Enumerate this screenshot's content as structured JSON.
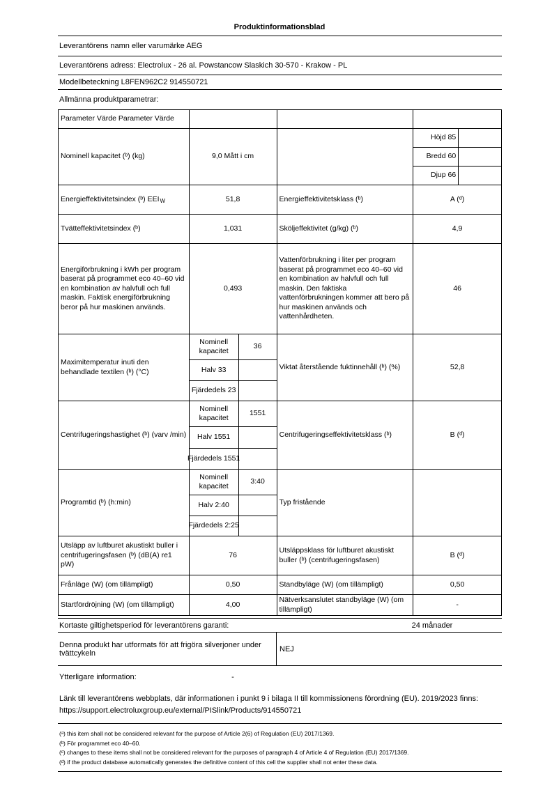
{
  "page": {
    "title": "Produktinformationsblad"
  },
  "supplier": {
    "name_row": "Leverantörens namn eller varumärke AEG",
    "address_row": "Leverantörens adress: Electrolux - 26 al. Powstancow Slaskich 30-570 - Krakow - PL",
    "model_row": "Modellbeteckning L8FEN962C2 914550721",
    "section_label": "Allmänna produktparametrar:"
  },
  "table": {
    "header": "Parameter Värde Parameter Värde",
    "nominell": {
      "label": "Nominell kapacitet (ᵇ) (kg)",
      "value": "9,0 Mått i cm",
      "dims": [
        "Höjd 85",
        "Bredd 60",
        "Djup 66"
      ]
    },
    "eei": {
      "label_prefix": "Energieffektivitetsindex (ᵇ) EEI",
      "label_subscript": "W",
      "value": "51,8",
      "label2": "Energieffektivitetsklass (ᵇ)",
      "value2": "A (ᵈ)"
    },
    "tvatt": {
      "label": "Tvätteffektivitetsindex (ᵇ)",
      "value": "1,031",
      "label2": "Sköljeffektivitet (g/kg) (ᵇ)",
      "value2": "4,9"
    },
    "energi": {
      "label": "Energiförbrukning i kWh per program baserat på programmet eco 40–60 vid en kombination av halvfull och full maskin. Faktisk energiförbrukning beror på hur maskinen används.",
      "value": "0,493",
      "label2": "Vattenförbrukning i liter per program baserat på programmet eco 40–60 vid en kombination av halvfull och full maskin. Den faktiska vattenförbrukningen kommer att bero på hur maskinen används och vattenhårdheten.",
      "value2": "46"
    },
    "maxtemp": {
      "label": "Maximitemperatur inuti den behandlade textilen (ᵇ) (°C)",
      "sub": [
        {
          "label": "Nominell kapacitet",
          "value": "36"
        },
        {
          "label": "Halv 33",
          "value": ""
        },
        {
          "label": "Fjärdedels 23",
          "value": ""
        }
      ],
      "label2": "Viktat återstående fuktinnehåll (ᵇ) (%)",
      "value2": "52,8"
    },
    "centrifug": {
      "label": "Centrifugeringshastighet (ᵇ) (varv /min)",
      "sub": [
        {
          "label": "Nominell kapacitet",
          "value": "1551"
        },
        {
          "label": "Halv 1551",
          "value": ""
        },
        {
          "label": "Fjärdedels 1551",
          "value": ""
        }
      ],
      "label2": "Centrifugeringseffektivitetsklass (ᵇ)",
      "value2": "B (ᵈ)"
    },
    "programtid": {
      "label": "Programtid (ᵇ) (h:min)",
      "sub": [
        {
          "label": "Nominell kapacitet",
          "value": "3:40"
        },
        {
          "label": "Halv 2:40",
          "value": ""
        },
        {
          "label": "Fjärdedels 2:25",
          "value": ""
        }
      ],
      "label2": "Typ fristående",
      "value2": ""
    },
    "buller": {
      "label": "Utsläpp av luftburet akustiskt buller i centrifugeringsfasen (ᵇ) (dB(A) re1 pW)",
      "value": "76",
      "label2": "Utsläppsklass för luftburet akustiskt buller (ᵇ) (centrifugeringsfasen)",
      "value2": "B (ᵈ)"
    },
    "franlage": {
      "label": "Frånläge (W) (om tillämpligt)",
      "value": "0,50",
      "label2": "Standbyläge (W) (om tillämpligt)",
      "value2": "0,50"
    },
    "startfordrojning": {
      "label": "Startfördröjning (W) (om tillämpligt)",
      "value": "4,00",
      "label2": "Nätverksanslutet standbyläge (W) (om tillämpligt)",
      "value2": "-"
    }
  },
  "footer": {
    "garanti_label": "Kortaste giltighetsperiod för leverantörens garanti:",
    "garanti_value": "24 månader",
    "silver_label": "Denna produkt har utformats för att frigöra silverjoner under tvättcykeln",
    "silver_value": "NEJ",
    "more_info_label": "Ytterligare information:",
    "more_info_value": "-",
    "link_text": "Länk till leverantörens webbplats, där informationen i punkt 9 i bilaga II till kommissionens förordning (EU). 2019/2023 finns:",
    "link_url": "https://support.electroluxgroup.eu/external/PISlink/Products/914550721",
    "footnotes": [
      "(ᵃ) this item shall not be considered relevant for the purpose of Article 2(6) of Regulation (EU) 2017/1369.",
      "(ᵇ) För programmet eco 40–60.",
      "(ᶜ) changes to these items shall not be considered relevant for the purposes of paragraph 4 of Article 4 of Regulation (EU) 2017/1369.",
      "(ᵈ) if the product database automatically generates the definitive content of this cell the supplier shall not enter these data."
    ]
  }
}
